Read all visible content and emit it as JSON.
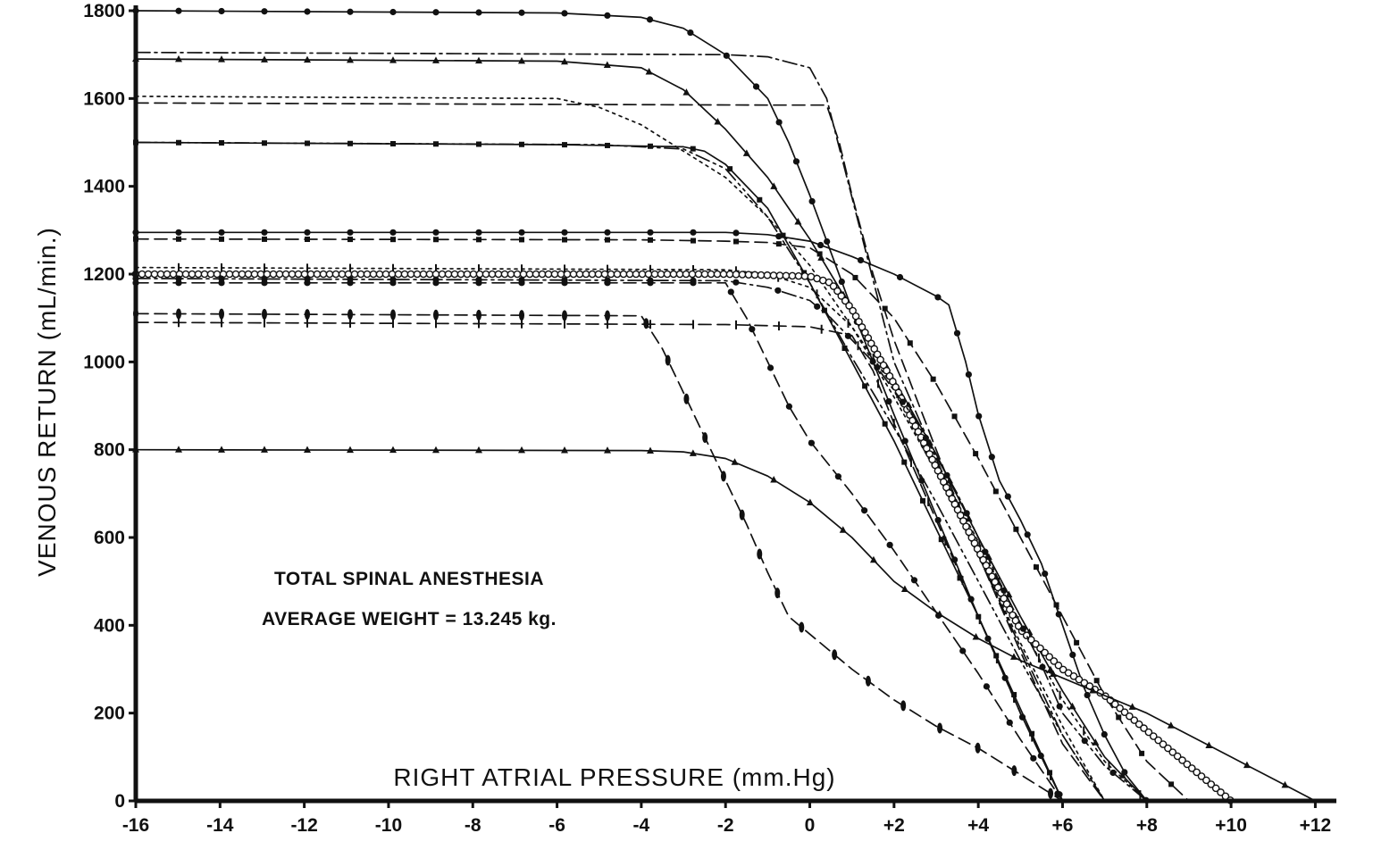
{
  "chart_data": {
    "type": "line",
    "xlabel": "RIGHT ATRIAL PRESSURE (mm.Hg)",
    "ylabel": "VENOUS RETURN (mL/min.)",
    "xlim": [
      -16,
      12.5
    ],
    "ylim": [
      0,
      1800
    ],
    "x_ticks": [
      -16,
      -14,
      -12,
      -10,
      -8,
      -6,
      -4,
      -2,
      0,
      2,
      4,
      6,
      8,
      10,
      12
    ],
    "x_tick_labels": [
      "-16",
      "-14",
      "-12",
      "-10",
      "-8",
      "-6",
      "-4",
      "-2",
      "0",
      "+2",
      "+4",
      "+6",
      "+8",
      "+10",
      "+12"
    ],
    "y_ticks": [
      0,
      200,
      400,
      600,
      800,
      1000,
      1200,
      1400,
      1600,
      1800
    ],
    "y_tick_labels": [
      "0",
      "200",
      "400",
      "600",
      "800",
      "1000",
      "1200",
      "1400",
      "1600",
      "1800"
    ],
    "grid": false,
    "annotations": [
      "TOTAL SPINAL ANESTHESIA",
      "AVERAGE WEIGHT = 13.245 kg."
    ],
    "colors": {
      "ink": "#111111",
      "background": "#ffffff"
    },
    "series": [
      {
        "style": "solid",
        "marker": "dot",
        "x": [
          -16,
          -6,
          -4,
          -3,
          -2,
          -1,
          -0.5,
          0,
          0.5,
          1,
          1.5,
          2,
          3,
          4,
          5,
          6
        ],
        "y": [
          1800,
          1795,
          1785,
          1760,
          1700,
          1600,
          1500,
          1380,
          1250,
          1120,
          1000,
          880,
          650,
          420,
          200,
          0
        ]
      },
      {
        "style": "dash-dot",
        "marker": "none",
        "x": [
          -16,
          -2,
          -1,
          0,
          0.4,
          0.8,
          1.2,
          1.6,
          2,
          3,
          4,
          5,
          6,
          7
        ],
        "y": [
          1705,
          1700,
          1695,
          1670,
          1600,
          1450,
          1300,
          1150,
          1000,
          780,
          560,
          350,
          150,
          0
        ]
      },
      {
        "style": "solid",
        "marker": "triangle",
        "x": [
          -16,
          -6,
          -4,
          -3,
          -2,
          -1,
          0,
          1,
          2,
          3,
          4,
          5,
          6,
          7,
          8
        ],
        "y": [
          1690,
          1685,
          1670,
          1620,
          1530,
          1420,
          1280,
          1120,
          960,
          790,
          600,
          420,
          250,
          100,
          0
        ]
      },
      {
        "style": "dashed",
        "marker": "none",
        "x": [
          -16,
          -1,
          0.4,
          0.7,
          1,
          1.5,
          2,
          3,
          4,
          5,
          6,
          7
        ],
        "y": [
          1590,
          1585,
          1585,
          1500,
          1380,
          1200,
          1050,
          800,
          560,
          340,
          130,
          0
        ]
      },
      {
        "style": "dotted",
        "marker": "none",
        "x": [
          -16,
          -6,
          -5,
          -4,
          -3,
          -2,
          -1,
          0,
          1,
          2,
          3,
          4,
          5,
          6,
          7
        ],
        "y": [
          1605,
          1600,
          1580,
          1540,
          1480,
          1420,
          1330,
          1220,
          1080,
          920,
          750,
          560,
          360,
          170,
          0
        ]
      },
      {
        "style": "solid",
        "marker": "square",
        "x": [
          -16,
          -6,
          -3,
          -2.5,
          -2,
          -1,
          0,
          1,
          2,
          3,
          4,
          5,
          6
        ],
        "y": [
          1500,
          1495,
          1490,
          1480,
          1450,
          1350,
          1180,
          1000,
          820,
          620,
          420,
          210,
          0
        ]
      },
      {
        "style": "dash-dot-dot",
        "marker": "none",
        "x": [
          -16,
          -5,
          -3,
          -2,
          -1,
          0,
          1,
          2,
          3,
          4,
          5,
          6,
          7
        ],
        "y": [
          1500,
          1495,
          1485,
          1440,
          1330,
          1180,
          1010,
          850,
          680,
          500,
          320,
          150,
          0
        ]
      },
      {
        "style": "solid",
        "marker": "dot",
        "x": [
          -16,
          -2,
          -1,
          0,
          1,
          2,
          3,
          3.3,
          3.7,
          4,
          4.5,
          5,
          5.5,
          6,
          6.5,
          7,
          7.5,
          8
        ],
        "y": [
          1295,
          1295,
          1290,
          1275,
          1240,
          1200,
          1150,
          1130,
          1000,
          880,
          730,
          640,
          540,
          400,
          260,
          150,
          60,
          0
        ]
      },
      {
        "style": "dashed",
        "marker": "square",
        "x": [
          -16,
          -4,
          -2,
          -1,
          0,
          1,
          2,
          3,
          4,
          5,
          6,
          7,
          8,
          9
        ],
        "y": [
          1280,
          1278,
          1275,
          1272,
          1260,
          1200,
          1100,
          950,
          780,
          600,
          420,
          240,
          90,
          0
        ]
      },
      {
        "style": "dotted",
        "marker": "cross",
        "x": [
          -16,
          -2,
          -1,
          0,
          1,
          2,
          3,
          4,
          5,
          6,
          7,
          8
        ],
        "y": [
          1215,
          1210,
          1200,
          1170,
          1080,
          940,
          770,
          590,
          400,
          230,
          90,
          0
        ]
      },
      {
        "style": "solid-thick",
        "marker": "circle",
        "x": [
          -16,
          -2,
          0,
          0.5,
          1,
          2,
          3,
          4,
          5,
          6,
          7,
          8,
          9,
          10
        ],
        "y": [
          1200,
          1200,
          1195,
          1180,
          1120,
          950,
          760,
          570,
          390,
          300,
          240,
          160,
          80,
          0
        ]
      },
      {
        "style": "dash-dot",
        "marker": "dot",
        "x": [
          -16,
          -2,
          -1,
          0,
          0.5,
          1.5,
          2.5,
          3.5,
          4.5,
          5.5,
          6,
          7,
          8
        ],
        "y": [
          1190,
          1185,
          1170,
          1140,
          1100,
          1000,
          870,
          700,
          500,
          310,
          200,
          80,
          0
        ]
      },
      {
        "style": "dashed",
        "marker": "dot",
        "x": [
          -16,
          -2,
          -1.5,
          -1,
          -0.5,
          0,
          1,
          2,
          3,
          4,
          5,
          6
        ],
        "y": [
          1180,
          1180,
          1100,
          1000,
          900,
          820,
          700,
          570,
          430,
          290,
          140,
          0
        ]
      },
      {
        "style": "dashed",
        "marker": "oval",
        "x": [
          -16,
          -4,
          -3.5,
          -3,
          -2.5,
          -2,
          -1.5,
          -1,
          -0.5,
          0,
          1,
          2,
          3,
          4,
          5,
          6
        ],
        "y": [
          1110,
          1105,
          1030,
          930,
          830,
          730,
          630,
          520,
          420,
          380,
          300,
          230,
          170,
          120,
          60,
          0
        ]
      },
      {
        "style": "dashed",
        "marker": "cross",
        "x": [
          -16,
          -2,
          0,
          1,
          1.5,
          2,
          3,
          4,
          5,
          6
        ],
        "y": [
          1090,
          1085,
          1080,
          1060,
          980,
          860,
          640,
          420,
          200,
          0
        ]
      },
      {
        "style": "solid",
        "marker": "triangle",
        "x": [
          -16,
          -4,
          -3,
          -2,
          -1,
          0,
          1,
          2,
          3,
          4,
          5,
          6,
          7,
          8,
          9,
          10,
          11,
          12
        ],
        "y": [
          800,
          798,
          795,
          780,
          740,
          680,
          600,
          500,
          430,
          370,
          320,
          280,
          240,
          200,
          150,
          100,
          50,
          0
        ]
      }
    ]
  }
}
